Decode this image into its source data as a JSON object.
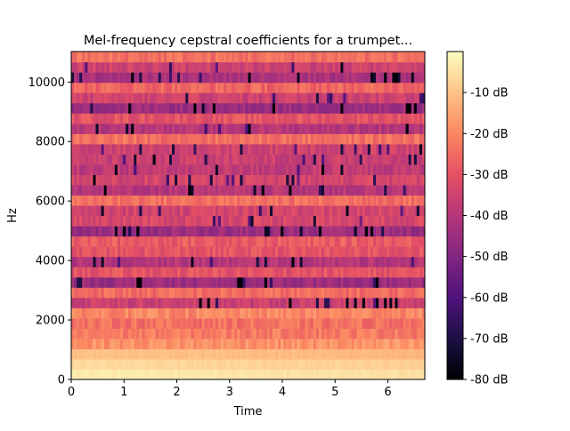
{
  "chart_data": {
    "type": "heatmap",
    "title": "Mel-frequency cepstral coefficients for a trumpet...",
    "xlabel": "Time",
    "ylabel": "Hz",
    "xlim": [
      0,
      6.7
    ],
    "ylim": [
      0,
      11025
    ],
    "x_ticks": [
      0,
      1,
      2,
      3,
      4,
      5,
      6
    ],
    "x_tick_labels": [
      "0",
      "1",
      "2",
      "3",
      "4",
      "5",
      "6"
    ],
    "y_ticks": [
      0,
      2000,
      4000,
      6000,
      8000,
      10000
    ],
    "y_tick_labels": [
      "0",
      "2000",
      "4000",
      "6000",
      "8000",
      "10000"
    ],
    "colorbar": {
      "colormap": "magma",
      "range": [
        -80,
        0
      ],
      "ticks": [
        -10,
        -20,
        -30,
        -40,
        -50,
        -60,
        -70,
        -80
      ],
      "tick_labels": [
        "-10 dB",
        "-20 dB",
        "-30 dB",
        "-40 dB",
        "-50 dB",
        "-60 dB",
        "-70 dB",
        "-80 dB"
      ]
    },
    "n_bands": 32,
    "band_levels_db": [
      -3,
      -6,
      -10,
      -18,
      -22,
      -24,
      -20,
      -36,
      -25,
      -45,
      -30,
      -40,
      -30,
      -28,
      -45,
      -33,
      -34,
      -24,
      -40,
      -34,
      -38,
      -36,
      -35,
      -24,
      -40,
      -30,
      -45,
      -35,
      -26,
      -42,
      -35,
      -24
    ]
  }
}
